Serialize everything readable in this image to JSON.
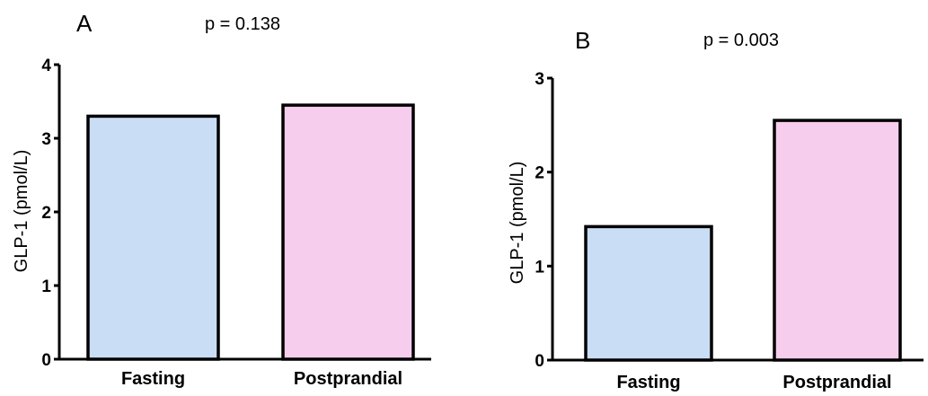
{
  "chart_data": [
    {
      "type": "bar",
      "panel_label": "A",
      "annotation": "p = 0.138",
      "categories": [
        "Fasting",
        "Postprandial"
      ],
      "values": [
        3.3,
        3.45
      ],
      "colors": [
        "#c9ddf5",
        "#f7cdee"
      ],
      "ylabel": "GLP-1 (pmol/L)",
      "ylim": [
        0,
        4
      ],
      "yticks": [
        "0",
        "1",
        "2",
        "3",
        "4"
      ],
      "grid": false
    },
    {
      "type": "bar",
      "panel_label": "B",
      "annotation": "p = 0.003",
      "categories": [
        "Fasting",
        "Postprandial"
      ],
      "values": [
        1.42,
        2.55
      ],
      "colors": [
        "#c9ddf5",
        "#f7cdee"
      ],
      "ylabel": "GLP-1 (pmol/L)",
      "ylim": [
        0,
        3
      ],
      "yticks": [
        "0",
        "1",
        "2",
        "3"
      ],
      "grid": false
    }
  ]
}
